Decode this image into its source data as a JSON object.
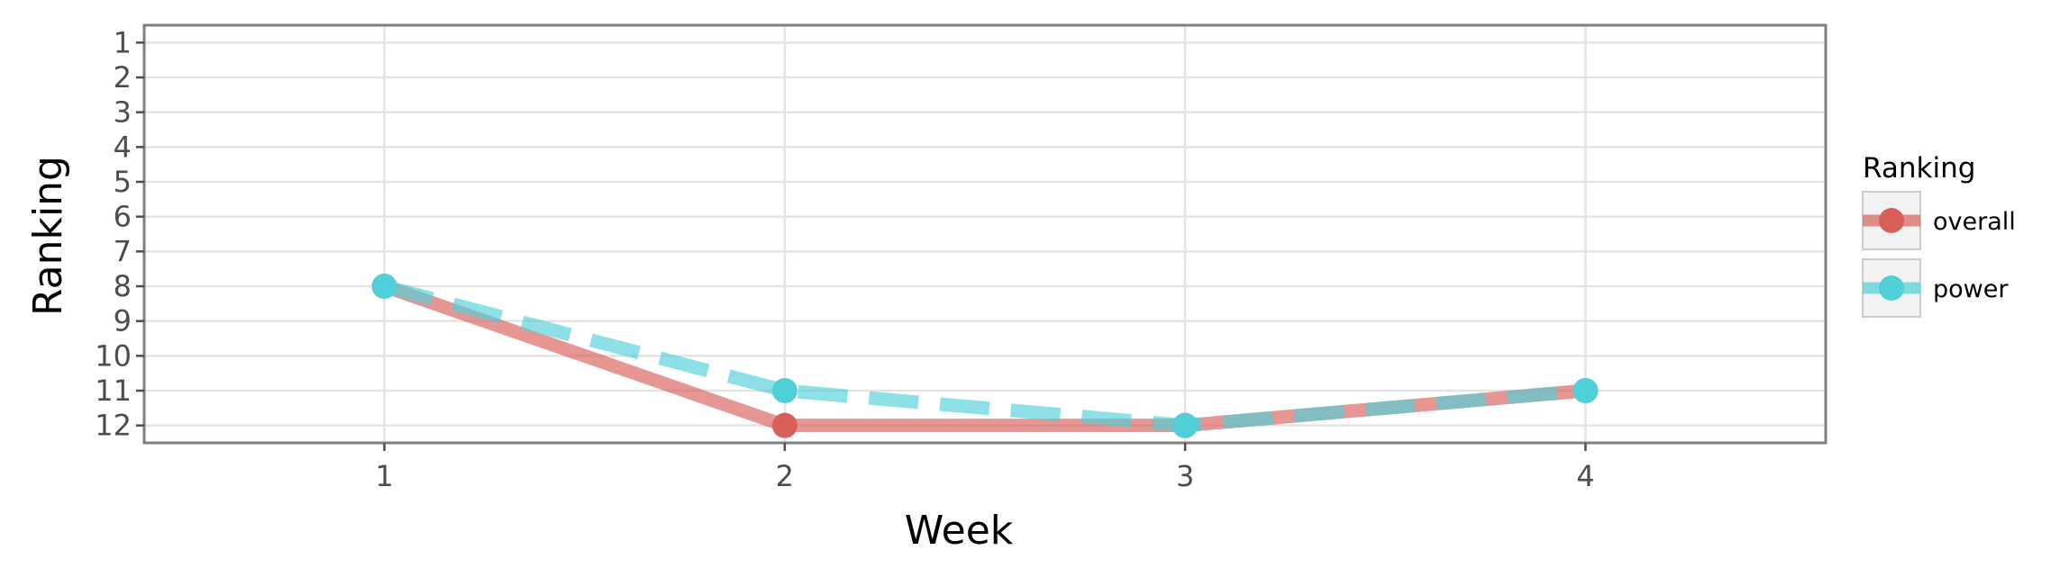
{
  "chart_data": {
    "type": "line",
    "xlabel": "Week",
    "ylabel": "Ranking",
    "x": [
      1,
      2,
      3,
      4
    ],
    "x_tick_labels": [
      "1",
      "2",
      "3",
      "4"
    ],
    "y_tick_labels": [
      "1",
      "2",
      "3",
      "4",
      "5",
      "6",
      "7",
      "8",
      "9",
      "10",
      "11",
      "12"
    ],
    "xlim": [
      0.4,
      4.6
    ],
    "ylim": [
      12.5,
      0.5
    ],
    "y_reversed": true,
    "grid": true,
    "legend": {
      "title": "Ranking",
      "position": "right",
      "entries": [
        "overall",
        "power"
      ]
    },
    "series": [
      {
        "name": "overall",
        "values": [
          8,
          12,
          12,
          11
        ],
        "color": "#d95f5a",
        "line_style": "solid"
      },
      {
        "name": "power",
        "values": [
          8,
          11,
          12,
          11
        ],
        "color": "#4fd0d8",
        "line_style": "dashed"
      }
    ]
  }
}
